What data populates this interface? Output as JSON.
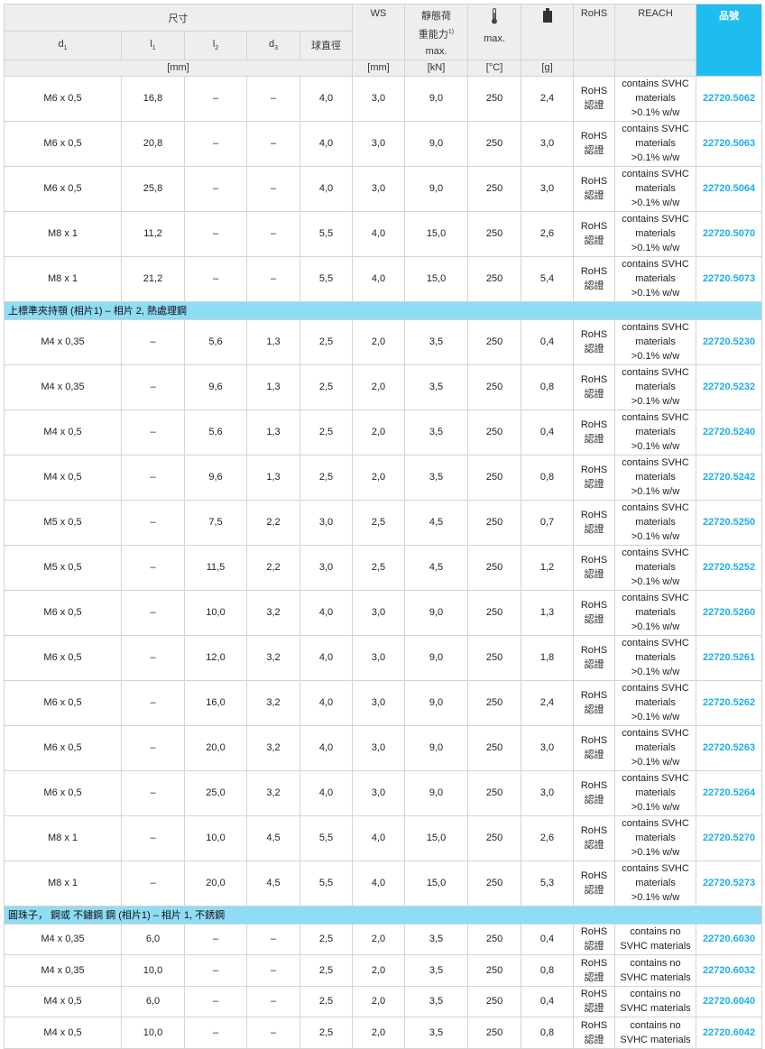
{
  "header": {
    "dimensions": "尺寸",
    "d1": "d",
    "d1_sub": "1",
    "l1": "l",
    "l1_sub": "1",
    "l2": "l",
    "l2_sub": "2",
    "d3": "d",
    "d3_sub": "3",
    "ball_dia": "球直徑",
    "ws": "WS",
    "load_1": "靜態荷",
    "load_2": "重能力",
    "load_sup": "1)",
    "load_3": "max.",
    "temp_max": "max.",
    "rohs": "RoHS",
    "reach": "REACH",
    "part_no": "品號",
    "unit_mm": "[mm]",
    "unit_ws": "[mm]",
    "unit_kn": "[kN]",
    "unit_c": "[°C]",
    "unit_g": "[g]",
    "temp_icon": "thermometer-icon",
    "weight_icon": "weight-icon",
    "accent": "#1ebdf0"
  },
  "groups": [
    {
      "title": "",
      "rows": [
        [
          "M6 x 0,5",
          "16,8",
          "–",
          "–",
          "4,0",
          "3,0",
          "9,0",
          "250",
          "2,4",
          "22720.5062"
        ],
        [
          "M6 x 0,5",
          "20,8",
          "–",
          "–",
          "4,0",
          "3,0",
          "9,0",
          "250",
          "3,0",
          "22720.5063"
        ],
        [
          "M6 x 0,5",
          "25,8",
          "–",
          "–",
          "4,0",
          "3,0",
          "9,0",
          "250",
          "3,0",
          "22720.5064"
        ],
        [
          "M8 x 1",
          "11,2",
          "–",
          "–",
          "5,5",
          "4,0",
          "15,0",
          "250",
          "2,6",
          "22720.5070"
        ],
        [
          "M8 x 1",
          "21,2",
          "–",
          "–",
          "5,5",
          "4,0",
          "15,0",
          "250",
          "5,4",
          "22720.5073"
        ]
      ]
    },
    {
      "title": "上標準夾持顎 (相片1) – 相片 2, 熱處理鋼",
      "rows": [
        [
          "M4 x 0,35",
          "–",
          "5,6",
          "1,3",
          "2,5",
          "2,0",
          "3,5",
          "250",
          "0,4",
          "22720.5230"
        ],
        [
          "M4 x 0,35",
          "–",
          "9,6",
          "1,3",
          "2,5",
          "2,0",
          "3,5",
          "250",
          "0,8",
          "22720.5232"
        ],
        [
          "M4 x 0,5",
          "–",
          "5,6",
          "1,3",
          "2,5",
          "2,0",
          "3,5",
          "250",
          "0,4",
          "22720.5240"
        ],
        [
          "M4 x 0,5",
          "–",
          "9,6",
          "1,3",
          "2,5",
          "2,0",
          "3,5",
          "250",
          "0,8",
          "22720.5242"
        ],
        [
          "M5 x 0,5",
          "–",
          "7,5",
          "2,2",
          "3,0",
          "2,5",
          "4,5",
          "250",
          "0,7",
          "22720.5250"
        ],
        [
          "M5 x 0,5",
          "–",
          "11,5",
          "2,2",
          "3,0",
          "2,5",
          "4,5",
          "250",
          "1,2",
          "22720.5252"
        ],
        [
          "M6 x 0,5",
          "–",
          "10,0",
          "3,2",
          "4,0",
          "3,0",
          "9,0",
          "250",
          "1,3",
          "22720.5260"
        ],
        [
          "M6 x 0,5",
          "–",
          "12,0",
          "3,2",
          "4,0",
          "3,0",
          "9,0",
          "250",
          "1,8",
          "22720.5261"
        ],
        [
          "M6 x 0,5",
          "–",
          "16,0",
          "3,2",
          "4,0",
          "3,0",
          "9,0",
          "250",
          "2,4",
          "22720.5262"
        ],
        [
          "M6 x 0,5",
          "–",
          "20,0",
          "3,2",
          "4,0",
          "3,0",
          "9,0",
          "250",
          "3,0",
          "22720.5263"
        ],
        [
          "M6 x 0,5",
          "–",
          "25,0",
          "3,2",
          "4,0",
          "3,0",
          "9,0",
          "250",
          "3,0",
          "22720.5264"
        ],
        [
          "M8 x 1",
          "–",
          "10,0",
          "4,5",
          "5,5",
          "4,0",
          "15,0",
          "250",
          "2,6",
          "22720.5270"
        ],
        [
          "M8 x 1",
          "–",
          "20,0",
          "4,5",
          "5,5",
          "4,0",
          "15,0",
          "250",
          "5,3",
          "22720.5273"
        ]
      ]
    },
    {
      "title": "圓珠子， 鋼或 不鏽鋼 鋼 (相片1) – 相片 1, 不銹鋼",
      "rows": [
        [
          "M4 x 0,35",
          "6,0",
          "–",
          "–",
          "2,5",
          "2,0",
          "3,5",
          "250",
          "0,4",
          "22720.6030"
        ],
        [
          "M4 x 0,35",
          "10,0",
          "–",
          "–",
          "2,5",
          "2,0",
          "3,5",
          "250",
          "0,8",
          "22720.6032"
        ],
        [
          "M4 x 0,5",
          "6,0",
          "–",
          "–",
          "2,5",
          "2,0",
          "3,5",
          "250",
          "0,4",
          "22720.6040"
        ],
        [
          "M4 x 0,5",
          "10,0",
          "–",
          "–",
          "2,5",
          "2,0",
          "3,5",
          "250",
          "0,8",
          "22720.6042"
        ]
      ]
    }
  ],
  "rohs_lines": [
    "RoHS",
    "認證"
  ],
  "reach_svhc": [
    "contains SVHC",
    "materials",
    ">0.1% w/w"
  ],
  "reach_none": [
    "contains no",
    "SVHC materials"
  ]
}
